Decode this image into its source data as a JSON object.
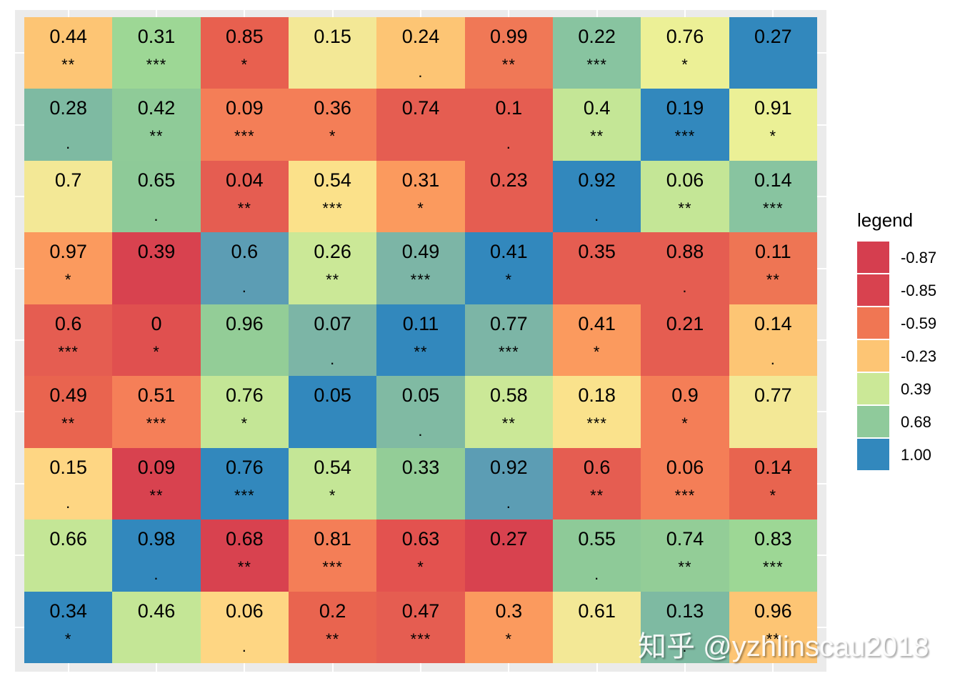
{
  "chart_data": {
    "type": "heatmap",
    "title": "",
    "xlabel": "",
    "ylabel": "",
    "grid": true,
    "legend_position": "right",
    "nrows": 9,
    "ncols": 9,
    "cells": [
      [
        {
          "value": "0.44",
          "sig": "**",
          "color": "#FDC574"
        },
        {
          "value": "0.31",
          "sig": "***",
          "color": "#9DD795"
        },
        {
          "value": "0.85",
          "sig": "*",
          "color": "#E8604F"
        },
        {
          "value": "0.15",
          "sig": "",
          "color": "#F3E896"
        },
        {
          "value": "0.24",
          "sig": ".",
          "color": "#FDC574"
        },
        {
          "value": "0.99",
          "sig": "**",
          "color": "#F07856"
        },
        {
          "value": "0.22",
          "sig": "***",
          "color": "#88C4A0"
        },
        {
          "value": "0.76",
          "sig": "*",
          "color": "#ECF096"
        },
        {
          "value": "0.27",
          "sig": "",
          "color": "#3288BD"
        }
      ],
      [
        {
          "value": "0.28",
          "sig": ".",
          "color": "#7EBAA2"
        },
        {
          "value": "0.42",
          "sig": "**",
          "color": "#8FCB98"
        },
        {
          "value": "0.09",
          "sig": "***",
          "color": "#F47E57"
        },
        {
          "value": "0.36",
          "sig": "*",
          "color": "#F47E57"
        },
        {
          "value": "0.74",
          "sig": "",
          "color": "#E55D51"
        },
        {
          "value": "0.1",
          "sig": ".",
          "color": "#E55D51"
        },
        {
          "value": "0.4",
          "sig": "**",
          "color": "#C4E696"
        },
        {
          "value": "0.19",
          "sig": "***",
          "color": "#3288BD"
        },
        {
          "value": "0.91",
          "sig": "*",
          "color": "#EBF096"
        }
      ],
      [
        {
          "value": "0.7",
          "sig": "",
          "color": "#F3E896"
        },
        {
          "value": "0.65",
          "sig": ".",
          "color": "#8ECA98"
        },
        {
          "value": "0.04",
          "sig": "**",
          "color": "#E55D51"
        },
        {
          "value": "0.54",
          "sig": "***",
          "color": "#FBE18A"
        },
        {
          "value": "0.31",
          "sig": "*",
          "color": "#FB9A5E"
        },
        {
          "value": "0.23",
          "sig": "",
          "color": "#E55D51"
        },
        {
          "value": "0.92",
          "sig": ".",
          "color": "#3288BD"
        },
        {
          "value": "0.06",
          "sig": "**",
          "color": "#C4E696"
        },
        {
          "value": "0.14",
          "sig": "***",
          "color": "#88C4A0"
        }
      ],
      [
        {
          "value": "0.97",
          "sig": "*",
          "color": "#FB9A5E"
        },
        {
          "value": "0.39",
          "sig": "",
          "color": "#D8424F"
        },
        {
          "value": "0.6",
          "sig": ".",
          "color": "#5C9DB4"
        },
        {
          "value": "0.26",
          "sig": "**",
          "color": "#CBE897"
        },
        {
          "value": "0.49",
          "sig": "***",
          "color": "#7CB5A6"
        },
        {
          "value": "0.41",
          "sig": "*",
          "color": "#3288BD"
        },
        {
          "value": "0.35",
          "sig": "",
          "color": "#E55D51"
        },
        {
          "value": "0.88",
          "sig": ".",
          "color": "#E55D51"
        },
        {
          "value": "0.11",
          "sig": "**",
          "color": "#EE7554"
        }
      ],
      [
        {
          "value": "0.6",
          "sig": "***",
          "color": "#E55D51"
        },
        {
          "value": "0",
          "sig": "*",
          "color": "#E0504F"
        },
        {
          "value": "0.96",
          "sig": "",
          "color": "#93CD97"
        },
        {
          "value": "0.07",
          "sig": ".",
          "color": "#7CB5A6"
        },
        {
          "value": "0.11",
          "sig": "**",
          "color": "#3288BD"
        },
        {
          "value": "0.77",
          "sig": "***",
          "color": "#7CB5A6"
        },
        {
          "value": "0.41",
          "sig": "*",
          "color": "#FB9A5E"
        },
        {
          "value": "0.21",
          "sig": "",
          "color": "#E55D51"
        },
        {
          "value": "0.14",
          "sig": ".",
          "color": "#FDC574"
        }
      ],
      [
        {
          "value": "0.49",
          "sig": "**",
          "color": "#E9644F"
        },
        {
          "value": "0.51",
          "sig": "***",
          "color": "#F57F58"
        },
        {
          "value": "0.76",
          "sig": "*",
          "color": "#C4E696"
        },
        {
          "value": "0.05",
          "sig": "",
          "color": "#3288BD"
        },
        {
          "value": "0.05",
          "sig": ".",
          "color": "#80BAA3"
        },
        {
          "value": "0.58",
          "sig": "**",
          "color": "#CBE897"
        },
        {
          "value": "0.18",
          "sig": "***",
          "color": "#FAE28C"
        },
        {
          "value": "0.9",
          "sig": "*",
          "color": "#F47E57"
        },
        {
          "value": "0.77",
          "sig": "",
          "color": "#F3E896"
        }
      ],
      [
        {
          "value": "0.15",
          "sig": ".",
          "color": "#FED683"
        },
        {
          "value": "0.09",
          "sig": "**",
          "color": "#D8424F"
        },
        {
          "value": "0.76",
          "sig": "***",
          "color": "#3288BD"
        },
        {
          "value": "0.54",
          "sig": "*",
          "color": "#C4E696"
        },
        {
          "value": "0.33",
          "sig": "",
          "color": "#93CD97"
        },
        {
          "value": "0.92",
          "sig": ".",
          "color": "#5C9DB4"
        },
        {
          "value": "0.6",
          "sig": "**",
          "color": "#E55D51"
        },
        {
          "value": "0.06",
          "sig": "***",
          "color": "#F47E57"
        },
        {
          "value": "0.14",
          "sig": "*",
          "color": "#E8644F"
        }
      ],
      [
        {
          "value": "0.66",
          "sig": "",
          "color": "#C4E696"
        },
        {
          "value": "0.98",
          "sig": ".",
          "color": "#3288BD"
        },
        {
          "value": "0.68",
          "sig": "**",
          "color": "#D8424F"
        },
        {
          "value": "0.81",
          "sig": "***",
          "color": "#F47E57"
        },
        {
          "value": "0.63",
          "sig": "*",
          "color": "#E3524F"
        },
        {
          "value": "0.27",
          "sig": "",
          "color": "#D8424F"
        },
        {
          "value": "0.55",
          "sig": ".",
          "color": "#8ECA98"
        },
        {
          "value": "0.74",
          "sig": "**",
          "color": "#93CD97"
        },
        {
          "value": "0.83",
          "sig": "***",
          "color": "#9DD795"
        }
      ],
      [
        {
          "value": "0.34",
          "sig": "*",
          "color": "#3288BD"
        },
        {
          "value": "0.46",
          "sig": "",
          "color": "#C4E696"
        },
        {
          "value": "0.06",
          "sig": ".",
          "color": "#FED683"
        },
        {
          "value": "0.2",
          "sig": "**",
          "color": "#E9644F"
        },
        {
          "value": "0.47",
          "sig": "***",
          "color": "#E55D51"
        },
        {
          "value": "0.3",
          "sig": "*",
          "color": "#FB9A5E"
        },
        {
          "value": "0.61",
          "sig": "",
          "color": "#F3E896"
        },
        {
          "value": "0.13",
          "sig": ".",
          "color": "#7EBAA2"
        },
        {
          "value": "0.96",
          "sig": "**",
          "color": "#FDC574"
        }
      ]
    ],
    "legend": {
      "title": "legend",
      "entries": [
        {
          "label": "-0.87",
          "color": "#D53E4F"
        },
        {
          "label": "-0.85",
          "color": "#D8424F"
        },
        {
          "label": "-0.59",
          "color": "#F07653"
        },
        {
          "label": "-0.23",
          "color": "#FDC574"
        },
        {
          "label": "0.39",
          "color": "#CBE897"
        },
        {
          "label": "0.68",
          "color": "#8FCA9B"
        },
        {
          "label": "1.00",
          "color": "#3288BD"
        }
      ]
    }
  },
  "watermark": "知乎 @yzhlinscau2018",
  "panel_background": "#EBEBEB"
}
